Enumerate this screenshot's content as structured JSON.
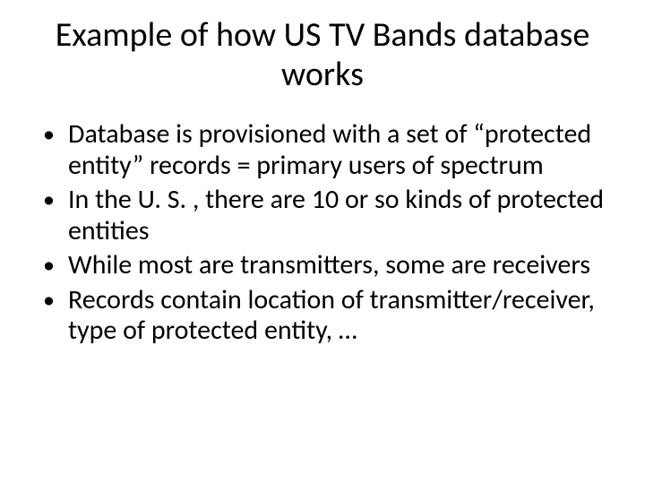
{
  "slide": {
    "title": "Example of how US TV Bands database works",
    "bullets": [
      "Database is provisioned with a set of “protected entity” records = primary users of spectrum",
      "In the U. S. , there are 10 or so kinds of protected entities",
      "While most are transmitters, some are receivers",
      "Records contain location of transmitter/receiver, type of protected entity, …"
    ]
  },
  "style": {
    "background_color": "#ffffff",
    "text_color": "#000000",
    "title_fontsize": 38,
    "body_fontsize": 30,
    "font_family": "Calibri"
  }
}
